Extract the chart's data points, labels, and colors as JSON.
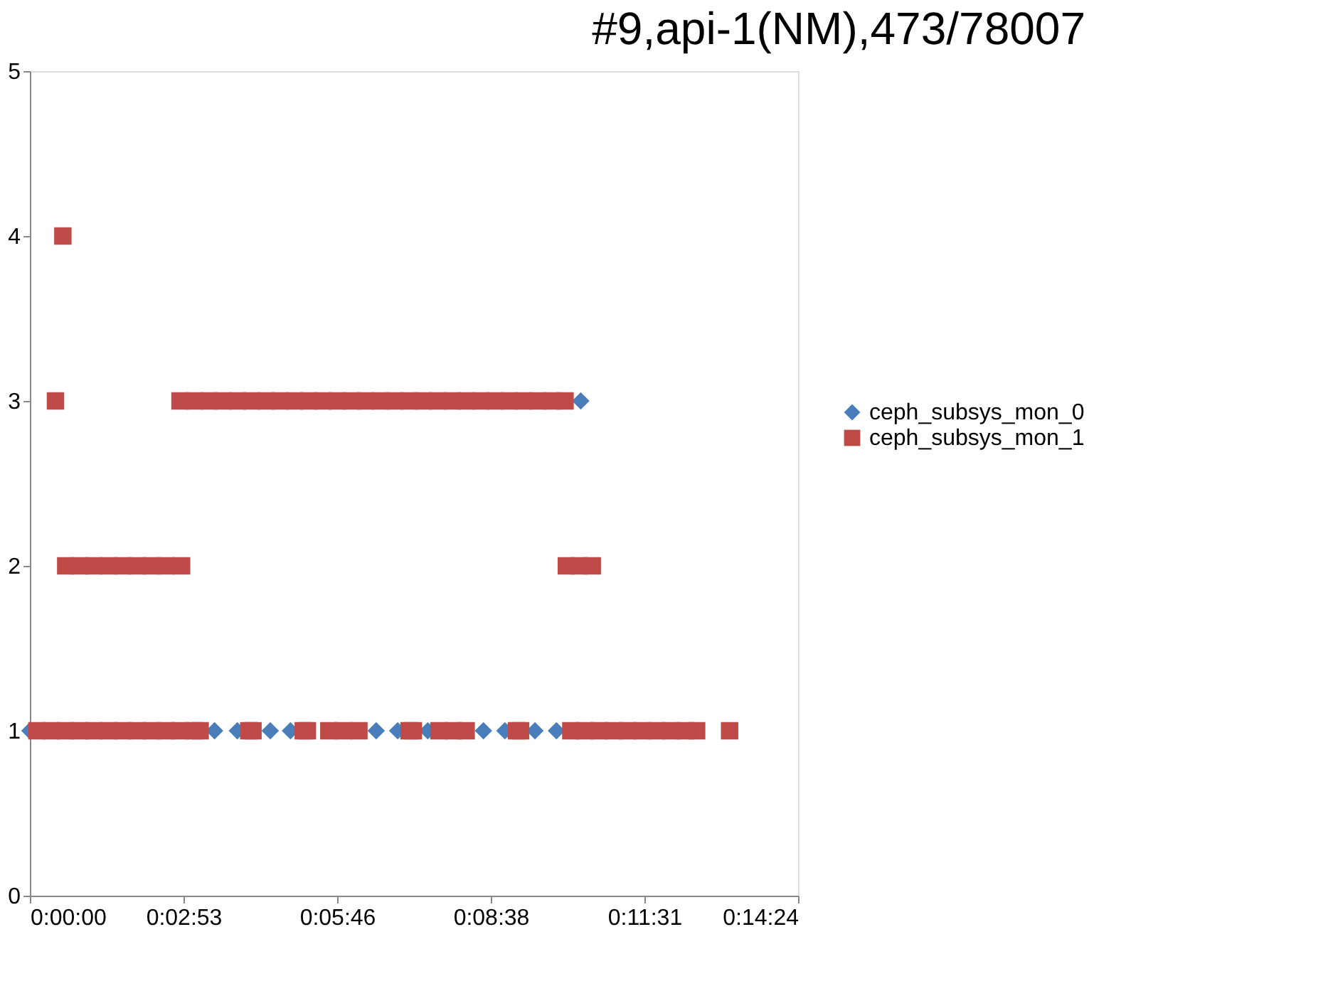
{
  "chart_data": {
    "type": "scatter",
    "title": "#9,api-1(NM),473/78007",
    "xlim": [
      0,
      0.24
    ],
    "xticks": [
      {
        "value": 0,
        "label": "0:00:00"
      },
      {
        "value": 0.048,
        "label": "0:02:53"
      },
      {
        "value": 0.096,
        "label": "0:05:46"
      },
      {
        "value": 0.144,
        "label": "0:08:38"
      },
      {
        "value": 0.192,
        "label": "0:11:31"
      },
      {
        "value": 0.24,
        "label": "0:14:24"
      }
    ],
    "ylim": [
      0,
      5
    ],
    "yticks": [
      0,
      1,
      2,
      3,
      4,
      5
    ],
    "grid": false,
    "legend": "right",
    "series": [
      {
        "name": "ceph_subsys_mon_0",
        "color": "#4a7ebb",
        "marker": "diamond",
        "x": [
          0.0,
          0.0577,
          0.0648,
          0.0751,
          0.0814,
          0.1082,
          0.1149,
          0.1243,
          0.1417,
          0.1484,
          0.1578,
          0.1645,
          0.1721
        ],
        "values": [
          1,
          1,
          1,
          1,
          1,
          1,
          1,
          1,
          1,
          1,
          1,
          1,
          3
        ]
      },
      {
        "name": "ceph_subsys_mon_1",
        "color": "#be4b48",
        "marker": "square",
        "x": [
          0.0022,
          0.0067,
          0.0112,
          0.0156,
          0.0201,
          0.0246,
          0.0291,
          0.0335,
          0.038,
          0.0425,
          0.0469,
          0.0514,
          0.0532,
          0.0684,
          0.0697,
          0.0854,
          0.0867,
          0.0934,
          0.0979,
          0.1028,
          0.1185,
          0.1198,
          0.1278,
          0.1323,
          0.1363,
          0.152,
          0.1533,
          0.169,
          0.1734,
          0.1779,
          0.1824,
          0.1868,
          0.1913,
          0.1958,
          0.2003,
          0.2047,
          0.2083,
          0.2186,
          0.0112,
          0.0156,
          0.0201,
          0.0246,
          0.0291,
          0.0335,
          0.038,
          0.0425,
          0.0474,
          0.1676,
          0.1716,
          0.1757,
          0.008,
          0.0469,
          0.0514,
          0.0559,
          0.0603,
          0.0648,
          0.0693,
          0.0738,
          0.0782,
          0.0827,
          0.0872,
          0.0916,
          0.0961,
          0.1006,
          0.105,
          0.1095,
          0.114,
          0.1185,
          0.1229,
          0.1274,
          0.1319,
          0.1363,
          0.1408,
          0.1453,
          0.1497,
          0.1542,
          0.1587,
          0.1632,
          0.1672,
          0.0103
        ],
        "values": [
          1,
          1,
          1,
          1,
          1,
          1,
          1,
          1,
          1,
          1,
          1,
          1,
          1,
          1,
          1,
          1,
          1,
          1,
          1,
          1,
          1,
          1,
          1,
          1,
          1,
          1,
          1,
          1,
          1,
          1,
          1,
          1,
          1,
          1,
          1,
          1,
          1,
          1,
          2,
          2,
          2,
          2,
          2,
          2,
          2,
          2,
          2,
          2,
          2,
          2,
          3,
          3,
          3,
          3,
          3,
          3,
          3,
          3,
          3,
          3,
          3,
          3,
          3,
          3,
          3,
          3,
          3,
          3,
          3,
          3,
          3,
          3,
          3,
          3,
          3,
          3,
          3,
          3,
          3,
          4
        ]
      }
    ]
  }
}
